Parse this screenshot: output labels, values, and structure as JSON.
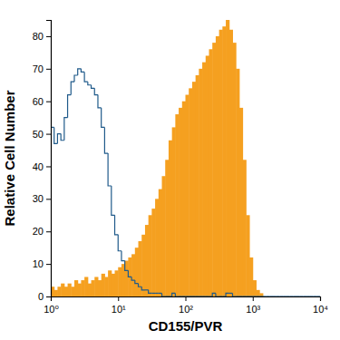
{
  "chart_data": {
    "type": "histogram",
    "log": "x",
    "x_label": "CD155/PVR",
    "y_label": "Relative Cell Number",
    "bins": [
      1,
      1.122,
      1.259,
      1.413,
      1.585,
      1.778,
      1.995,
      2.239,
      2.512,
      2.818,
      3.162,
      3.548,
      3.981,
      4.467,
      5.012,
      5.623,
      6.31,
      7.079,
      7.943,
      8.913,
      10,
      11.22,
      12.59,
      14.13,
      15.85,
      17.78,
      19.95,
      22.39,
      25.12,
      28.18,
      31.62,
      35.48,
      39.81,
      44.67,
      50.12,
      56.23,
      63.1,
      70.79,
      79.43,
      89.13,
      100,
      112.2,
      125.9,
      141.3,
      158.5,
      177.8,
      199.5,
      223.9,
      251.2,
      281.8,
      316.2,
      354.8,
      398.1,
      446.7,
      501.2,
      562.3,
      631,
      707.9,
      794.3,
      891.3,
      1000,
      1122,
      1259,
      1413,
      1585,
      1778,
      1995,
      2239,
      2512,
      2818,
      3162,
      3548,
      3981,
      4467,
      5012,
      5623,
      6310,
      7079,
      7943,
      8913,
      10000
    ],
    "series": [
      {
        "type": "step",
        "color": "#1f5a8a",
        "values": [
          52,
          47,
          50,
          48,
          55,
          62,
          66,
          68,
          70,
          69,
          66,
          65,
          64,
          62,
          58,
          52,
          44,
          34,
          25,
          19,
          14,
          11,
          8,
          6,
          5,
          4,
          3,
          2,
          2,
          1,
          1,
          1,
          1,
          0,
          0,
          0,
          1,
          0,
          0,
          0,
          0,
          0,
          0,
          0,
          0,
          0,
          0,
          0,
          1,
          0,
          0,
          0,
          1,
          1,
          0,
          0,
          0,
          0,
          0,
          0,
          0,
          0,
          0,
          0,
          0,
          0,
          0,
          0,
          0,
          0,
          0,
          0,
          0,
          0,
          0,
          0,
          0,
          0,
          0,
          0
        ]
      },
      {
        "type": "bar",
        "color": "#f5a020",
        "values": [
          3,
          2,
          3,
          4,
          3,
          4,
          3,
          5,
          4,
          5,
          6,
          4,
          5,
          6,
          5,
          7,
          6,
          8,
          7,
          8,
          9,
          10,
          11,
          12,
          13,
          15,
          17,
          19,
          22,
          25,
          27,
          30,
          33,
          37,
          42,
          48,
          52,
          56,
          58,
          60,
          62,
          64,
          66,
          68,
          70,
          72,
          74,
          76,
          78,
          80,
          82,
          83,
          85,
          82,
          78,
          70,
          58,
          42,
          25,
          12,
          5,
          2,
          1,
          0,
          0,
          0,
          0,
          0,
          0,
          0,
          0,
          0,
          0,
          0,
          0,
          0,
          0,
          0,
          0,
          0
        ]
      }
    ],
    "xlim": [
      1,
      10000
    ],
    "xticks": [
      {
        "value": 1,
        "label": "10⁰"
      },
      {
        "value": 10,
        "label": "10¹"
      },
      {
        "value": 100,
        "label": "10²"
      },
      {
        "value": 1000,
        "label": "10³"
      },
      {
        "value": 10000,
        "label": "10⁴"
      }
    ],
    "ylim": [
      0,
      85
    ],
    "yticks": [
      0,
      10,
      20,
      30,
      40,
      50,
      60,
      70,
      80
    ],
    "grid": false
  }
}
